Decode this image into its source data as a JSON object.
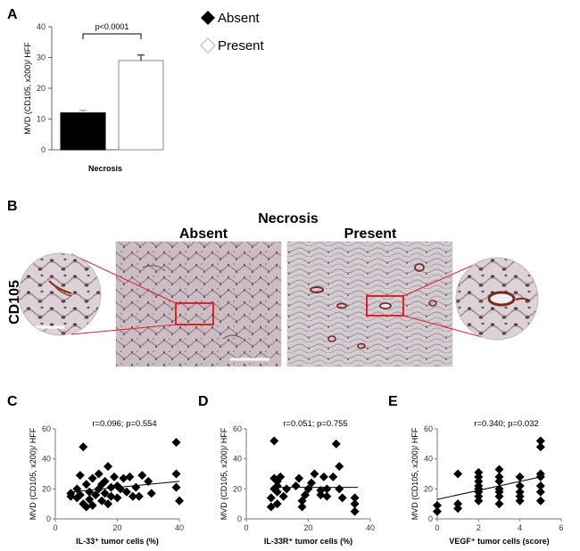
{
  "panels": {
    "A": "A",
    "B": "B",
    "C": "C",
    "D": "D",
    "E": "E"
  },
  "legend": [
    {
      "label": "Absent",
      "color": "#000000",
      "marker": "filled-diamond-icon"
    },
    {
      "label": "Present",
      "color": "#ffffff",
      "marker": "hollow-diamond-icon"
    }
  ],
  "micrograph": {
    "title": "Necrosis",
    "absent": "Absent",
    "present": "Present",
    "stain": "CD105"
  },
  "chart_data": [
    {
      "id": "A",
      "type": "bar",
      "categories": [
        "Absent",
        "Present"
      ],
      "values": [
        12,
        29
      ],
      "errors": [
        0.8,
        1.8
      ],
      "colors": [
        "#000000",
        "#ffffff"
      ],
      "xlabel": "Necrosis",
      "ylabel": "MVD (CD105, x200)/ HFF",
      "ylim": [
        0,
        40
      ],
      "yticks": [
        0,
        10,
        20,
        30,
        40
      ],
      "annotation": "p<0.0001",
      "grid": false
    },
    {
      "id": "C",
      "type": "scatter",
      "xlabel": "IL-33⁺ tumor cells (%)",
      "ylabel": "MVD (CD105, x200)/ HFF",
      "xlim": [
        0,
        40
      ],
      "ylim": [
        0,
        60
      ],
      "xticks": [
        0,
        20,
        40
      ],
      "yticks": [
        0,
        20,
        40,
        60
      ],
      "stat": "r=0.096; p=0.554",
      "trend": [
        [
          5,
          18
        ],
        [
          40,
          25
        ]
      ],
      "points": [
        [
          5,
          15
        ],
        [
          5,
          17
        ],
        [
          7,
          14
        ],
        [
          7,
          20
        ],
        [
          8,
          16
        ],
        [
          8,
          29
        ],
        [
          9,
          48
        ],
        [
          9,
          10
        ],
        [
          10,
          23
        ],
        [
          10,
          8
        ],
        [
          11,
          18
        ],
        [
          11,
          13
        ],
        [
          12,
          27
        ],
        [
          12,
          9
        ],
        [
          13,
          16
        ],
        [
          14,
          20
        ],
        [
          14,
          30
        ],
        [
          15,
          23
        ],
        [
          15,
          12
        ],
        [
          16,
          25
        ],
        [
          16,
          17
        ],
        [
          17,
          35
        ],
        [
          17,
          10
        ],
        [
          18,
          21
        ],
        [
          18,
          15
        ],
        [
          19,
          28
        ],
        [
          20,
          14
        ],
        [
          20,
          22
        ],
        [
          21,
          20
        ],
        [
          22,
          27
        ],
        [
          23,
          18
        ],
        [
          24,
          28
        ],
        [
          25,
          15
        ],
        [
          26,
          21
        ],
        [
          27,
          15
        ],
        [
          28,
          29
        ],
        [
          30,
          25
        ],
        [
          31,
          17
        ],
        [
          39,
          51
        ],
        [
          39,
          30
        ],
        [
          39,
          21
        ],
        [
          40,
          12
        ]
      ],
      "grid": false
    },
    {
      "id": "D",
      "type": "scatter",
      "xlabel": "IL-33R⁺ tumor cells (%)",
      "ylabel": "MVD (CD105, x200)/ HFF",
      "xlim": [
        0,
        40
      ],
      "ylim": [
        0,
        60
      ],
      "xticks": [
        0,
        20,
        40
      ],
      "yticks": [
        0,
        20,
        40,
        60
      ],
      "stat": "r=0.051; p=0.755",
      "trend": [
        [
          8,
          21
        ],
        [
          36,
          21
        ]
      ],
      "points": [
        [
          8,
          8
        ],
        [
          8,
          14
        ],
        [
          9,
          52
        ],
        [
          9,
          20
        ],
        [
          9,
          27
        ],
        [
          10,
          25
        ],
        [
          10,
          22
        ],
        [
          10,
          18
        ],
        [
          10,
          10
        ],
        [
          11,
          28
        ],
        [
          12,
          15
        ],
        [
          13,
          20
        ],
        [
          16,
          22
        ],
        [
          17,
          27
        ],
        [
          18,
          8
        ],
        [
          18,
          12
        ],
        [
          19,
          16
        ],
        [
          20,
          20
        ],
        [
          21,
          24
        ],
        [
          22,
          30
        ],
        [
          24,
          19
        ],
        [
          24,
          16
        ],
        [
          25,
          28
        ],
        [
          26,
          20
        ],
        [
          26,
          15
        ],
        [
          28,
          28
        ],
        [
          29,
          50
        ],
        [
          30,
          35
        ],
        [
          30,
          20
        ],
        [
          31,
          14
        ],
        [
          35,
          10
        ],
        [
          35,
          14
        ],
        [
          35,
          5
        ]
      ],
      "grid": false
    },
    {
      "id": "E",
      "type": "scatter",
      "xlabel": "VEGF⁺ tumor cells (score)",
      "ylabel": "MVD (CD105, x200)/ HFF",
      "xlim": [
        0,
        6
      ],
      "ylim": [
        0,
        60
      ],
      "xticks": [
        0,
        2,
        4,
        6
      ],
      "yticks": [
        0,
        20,
        40,
        60
      ],
      "stat": "r=0.340; p=0.032",
      "trend": [
        [
          0,
          13
        ],
        [
          5,
          28
        ]
      ],
      "points": [
        [
          0,
          5
        ],
        [
          0,
          9
        ],
        [
          1,
          7
        ],
        [
          1,
          10
        ],
        [
          1,
          30
        ],
        [
          2,
          12
        ],
        [
          2,
          15
        ],
        [
          2,
          18
        ],
        [
          2,
          20
        ],
        [
          2,
          22
        ],
        [
          2,
          25
        ],
        [
          2,
          28
        ],
        [
          2,
          31
        ],
        [
          3,
          10
        ],
        [
          3,
          15
        ],
        [
          3,
          18
        ],
        [
          3,
          20
        ],
        [
          3,
          25
        ],
        [
          3,
          28
        ],
        [
          3,
          33
        ],
        [
          4,
          12
        ],
        [
          4,
          15
        ],
        [
          4,
          18
        ],
        [
          4,
          22
        ],
        [
          4,
          28
        ],
        [
          5,
          12
        ],
        [
          5,
          18
        ],
        [
          5,
          22
        ],
        [
          5,
          28
        ],
        [
          5,
          30
        ],
        [
          5,
          48
        ],
        [
          5,
          52
        ]
      ],
      "grid": false
    }
  ]
}
